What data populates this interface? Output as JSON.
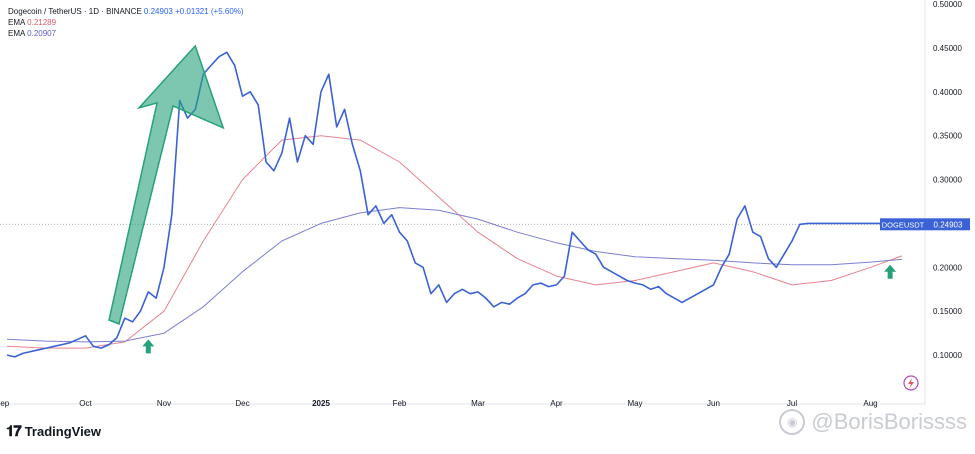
{
  "legend": {
    "symbol_line": "Dogecoin / TetherUS · 1D · BINANCE",
    "last_price": "0.24903",
    "change": "+0.01321 (+5.60%)",
    "ema1_label": "EMA",
    "ema1_value": "0.21289",
    "ema2_label": "EMA",
    "ema2_value": "0.20907"
  },
  "price_tag": {
    "symbol": "DOGEUSDT",
    "value": "0.24903"
  },
  "footer": {
    "brand": "TradingView",
    "watermark": "@BorisBorissss"
  },
  "colors": {
    "price": "#3a61d6",
    "ema_fast": "#e8838f",
    "ema_slow": "#7b7fd0",
    "arrow": "#26a17b",
    "tag": "#3a61d6"
  },
  "icons": {
    "brand_icon": "tradingview-logo-icon",
    "watermark_icon": "weibo-icon",
    "lightning_icon": "lightning-icon"
  },
  "chart_data": {
    "type": "line",
    "title": "Dogecoin / TetherUS · 1D · BINANCE",
    "y_range": [
      0.05,
      0.5
    ],
    "y_ticks": [
      0.5,
      0.45,
      0.4,
      0.35,
      0.3,
      0.25,
      0.2,
      0.15,
      0.1
    ],
    "y_tick_labels": [
      "0.50000",
      "0.45000",
      "0.40000",
      "0.35000",
      "0.30000",
      "0.25000",
      "0.20000",
      "0.15000",
      "0.10000"
    ],
    "x_labels": [
      "Sep",
      "Oct",
      "Nov",
      "Dec",
      "2025",
      "Feb",
      "Mar",
      "Apr",
      "May",
      "Jun",
      "Jul",
      "Aug"
    ],
    "x_label_positions": [
      0,
      1,
      2,
      3,
      4,
      5,
      6,
      7,
      8,
      9,
      10,
      11
    ],
    "grid": false,
    "series": [
      {
        "name": "DOGEUSDT",
        "x": [
          0,
          0.1,
          0.2,
          0.3,
          0.4,
          0.5,
          0.6,
          0.7,
          0.8,
          0.9,
          1.0,
          1.1,
          1.2,
          1.3,
          1.4,
          1.5,
          1.6,
          1.7,
          1.8,
          1.9,
          2.0,
          2.1,
          2.2,
          2.3,
          2.4,
          2.5,
          2.6,
          2.7,
          2.8,
          2.9,
          3.0,
          3.1,
          3.2,
          3.3,
          3.4,
          3.5,
          3.6,
          3.7,
          3.8,
          3.9,
          4.0,
          4.1,
          4.2,
          4.3,
          4.4,
          4.5,
          4.6,
          4.7,
          4.8,
          4.9,
          5.0,
          5.1,
          5.2,
          5.3,
          5.4,
          5.5,
          5.6,
          5.7,
          5.8,
          5.9,
          6.0,
          6.1,
          6.2,
          6.3,
          6.4,
          6.5,
          6.6,
          6.7,
          6.8,
          6.9,
          7.0,
          7.1,
          7.2,
          7.3,
          7.4,
          7.5,
          7.6,
          7.7,
          7.8,
          7.9,
          8.0,
          8.1,
          8.2,
          8.3,
          8.4,
          8.5,
          8.6,
          8.7,
          8.8,
          8.9,
          9.0,
          9.1,
          9.2,
          9.3,
          9.4,
          9.5,
          9.6,
          9.7,
          9.8,
          9.9,
          10.0,
          10.1,
          10.2,
          10.3,
          10.4,
          10.5,
          10.6,
          10.7,
          10.8,
          10.9,
          11.0,
          11.1,
          11.2,
          11.3,
          11.4
        ],
        "values": [
          0.1,
          0.098,
          0.102,
          0.104,
          0.106,
          0.108,
          0.11,
          0.112,
          0.114,
          0.118,
          0.122,
          0.11,
          0.108,
          0.112,
          0.12,
          0.142,
          0.138,
          0.15,
          0.172,
          0.165,
          0.2,
          0.26,
          0.39,
          0.37,
          0.38,
          0.42,
          0.43,
          0.44,
          0.445,
          0.43,
          0.395,
          0.4,
          0.385,
          0.32,
          0.31,
          0.33,
          0.37,
          0.32,
          0.35,
          0.34,
          0.4,
          0.42,
          0.36,
          0.38,
          0.34,
          0.31,
          0.26,
          0.27,
          0.25,
          0.26,
          0.24,
          0.23,
          0.205,
          0.2,
          0.17,
          0.18,
          0.16,
          0.17,
          0.175,
          0.17,
          0.172,
          0.165,
          0.155,
          0.16,
          0.158,
          0.165,
          0.17,
          0.18,
          0.182,
          0.178,
          0.18,
          0.19,
          0.24,
          0.23,
          0.22,
          0.215,
          0.2,
          0.195,
          0.19,
          0.185,
          0.182,
          0.18,
          0.175,
          0.178,
          0.17,
          0.165,
          0.16,
          0.165,
          0.17,
          0.175,
          0.18,
          0.2,
          0.215,
          0.255,
          0.27,
          0.24,
          0.235,
          0.21,
          0.2,
          0.215,
          0.23,
          0.249,
          0.25,
          0.25,
          0.25,
          0.25,
          0.25,
          0.25,
          0.25,
          0.25,
          0.25,
          0.25,
          0.25,
          0.25,
          0.249
        ]
      },
      {
        "name": "EMA 0.21289",
        "x": [
          0,
          0.5,
          1.0,
          1.5,
          2.0,
          2.5,
          3.0,
          3.5,
          4.0,
          4.5,
          5.0,
          5.5,
          6.0,
          6.5,
          7.0,
          7.5,
          8.0,
          8.5,
          9.0,
          9.5,
          10.0,
          10.5,
          11.0,
          11.4
        ],
        "values": [
          0.11,
          0.108,
          0.108,
          0.115,
          0.15,
          0.23,
          0.3,
          0.345,
          0.35,
          0.345,
          0.32,
          0.28,
          0.24,
          0.21,
          0.19,
          0.18,
          0.185,
          0.195,
          0.205,
          0.195,
          0.18,
          0.185,
          0.2,
          0.213
        ]
      },
      {
        "name": "EMA 0.20907",
        "x": [
          0,
          0.5,
          1.0,
          1.5,
          2.0,
          2.5,
          3.0,
          3.5,
          4.0,
          4.5,
          5.0,
          5.5,
          6.0,
          6.5,
          7.0,
          7.5,
          8.0,
          8.5,
          9.0,
          9.5,
          10.0,
          10.5,
          11.0,
          11.4
        ],
        "values": [
          0.118,
          0.116,
          0.115,
          0.116,
          0.125,
          0.155,
          0.195,
          0.23,
          0.25,
          0.262,
          0.268,
          0.265,
          0.255,
          0.24,
          0.228,
          0.218,
          0.212,
          0.21,
          0.208,
          0.205,
          0.203,
          0.203,
          0.206,
          0.209
        ]
      }
    ],
    "current_price_line": 0.24903,
    "annotations": [
      {
        "type": "big-arrow",
        "from": [
          1.3,
          0.14
        ],
        "to": [
          2.5,
          0.45
        ]
      },
      {
        "type": "up-arrow",
        "x": 1.8,
        "y": 0.11
      },
      {
        "type": "up-arrow",
        "x": 11.25,
        "y": 0.195
      }
    ]
  }
}
